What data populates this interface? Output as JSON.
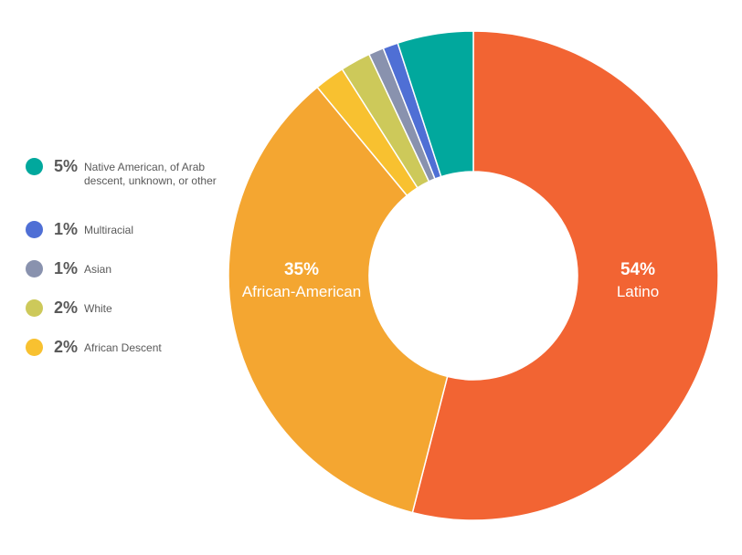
{
  "chart_data": {
    "type": "pie",
    "donut": true,
    "title": "",
    "slices": [
      {
        "label": "Latino",
        "value": 54,
        "pct_text": "54%",
        "color": "#f26433"
      },
      {
        "label": "African-American",
        "value": 35,
        "pct_text": "35%",
        "color": "#f4a631"
      },
      {
        "label": "African Descent",
        "value": 2,
        "pct_text": "2%",
        "color": "#f8c130"
      },
      {
        "label": "White",
        "value": 2,
        "pct_text": "2%",
        "color": "#cdc95a"
      },
      {
        "label": "Asian",
        "value": 1,
        "pct_text": "1%",
        "color": "#8992ae"
      },
      {
        "label": "Multiracial",
        "value": 1,
        "pct_text": "1%",
        "color": "#4f6fd5"
      },
      {
        "label": "Native American, of Arab descent, unknown, or other",
        "value": 5,
        "pct_text": "5%",
        "color": "#01a89d"
      }
    ],
    "legend": {
      "placement": "left",
      "items": [
        {
          "pct": "5%",
          "label": "Native American, of Arab descent, unknown, or other",
          "color": "#01a89d"
        },
        {
          "pct": "1%",
          "label": "Multiracial",
          "color": "#4f6fd5"
        },
        {
          "pct": "1%",
          "label": "Asian",
          "color": "#8992ae"
        },
        {
          "pct": "2%",
          "label": "White",
          "color": "#cdc95a"
        },
        {
          "pct": "2%",
          "label": "African Descent",
          "color": "#f8c130"
        }
      ]
    },
    "inside_labels": [
      {
        "pct": "54%",
        "label": "Latino"
      },
      {
        "pct": "35%",
        "label": "African-American"
      }
    ]
  }
}
